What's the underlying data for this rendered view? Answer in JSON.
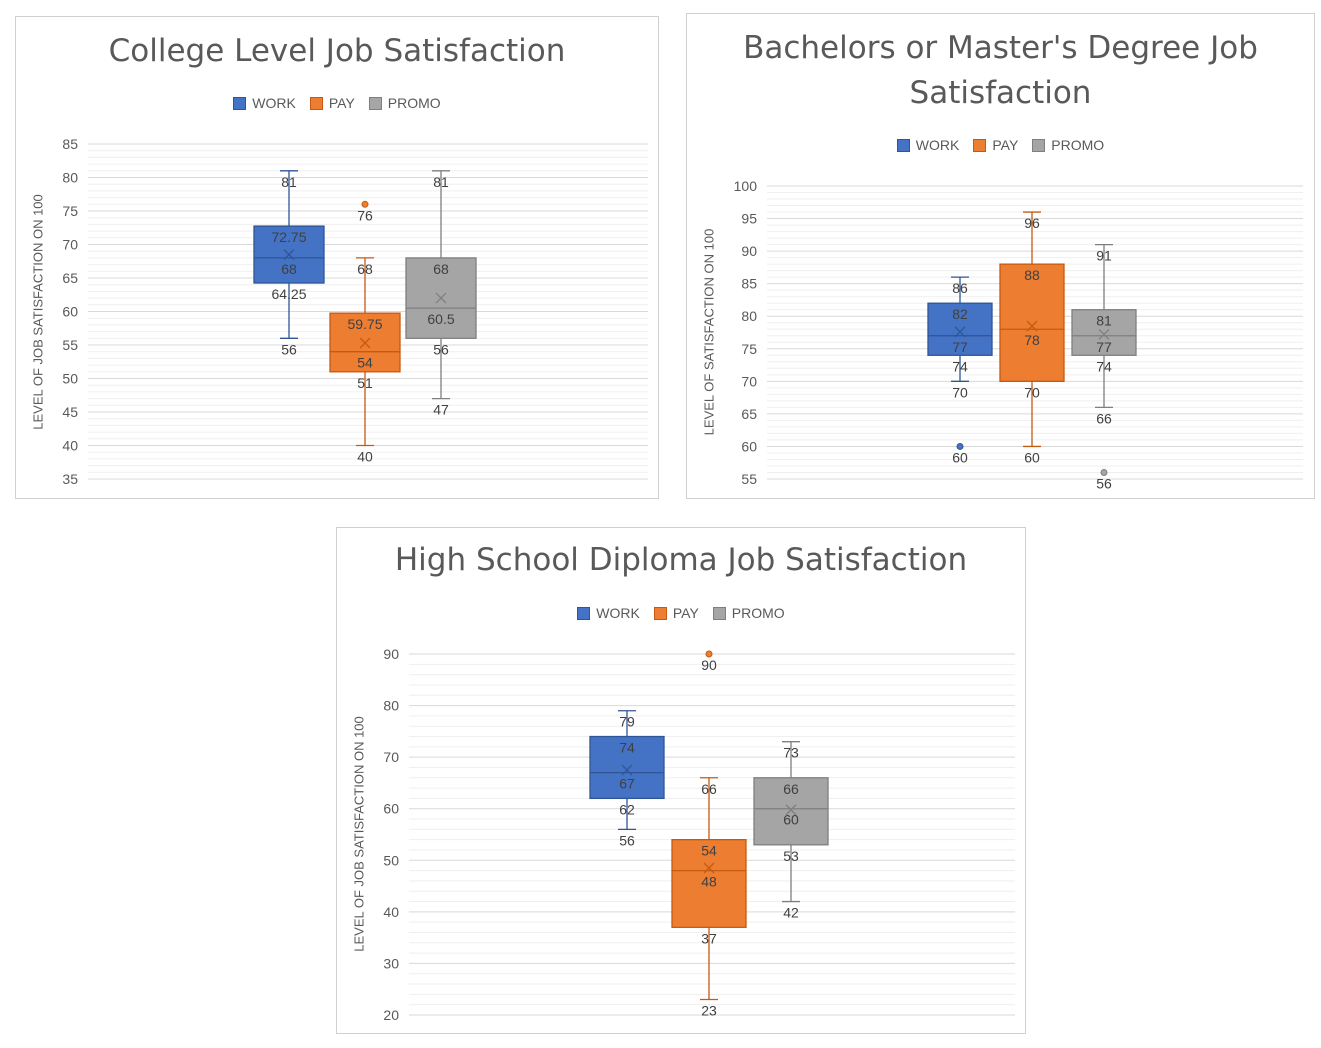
{
  "colors": {
    "work": "#4472c4",
    "work_stroke": "#2f5597",
    "pay": "#ed7d31",
    "pay_stroke": "#c55a11",
    "promo": "#a5a5a5",
    "promo_stroke": "#7f7f7f",
    "grid": "#d9d9d9",
    "minor_grid": "#efefef"
  },
  "chart_data": [
    {
      "type": "box",
      "title": "College Level Job Satisfaction",
      "ylabel": "LEVEL OF JOB SATISFACTION ON 100",
      "ylim": [
        35,
        85
      ],
      "yticks": [
        35,
        40,
        45,
        50,
        55,
        60,
        65,
        70,
        75,
        80,
        85
      ],
      "legend": [
        "WORK",
        "PAY",
        "PROMO"
      ],
      "series": [
        {
          "name": "WORK",
          "min": 56,
          "q1": 64.25,
          "median": 68,
          "q3": 72.75,
          "max": 81,
          "mean": 68.5,
          "outliers": [],
          "labels": [
            {
              "text": "81",
              "value": 81
            },
            {
              "text": "72.75",
              "value": 72.75
            },
            {
              "text": "68",
              "value": 68
            },
            {
              "text": "64.25",
              "value": 64.25
            },
            {
              "text": "56",
              "value": 56
            }
          ]
        },
        {
          "name": "PAY",
          "min": 40,
          "q1": 51,
          "median": 54,
          "q3": 59.75,
          "max": 68,
          "mean": 55.3,
          "outliers": [
            76
          ],
          "labels": [
            {
              "text": "76",
              "value": 76
            },
            {
              "text": "68",
              "value": 68
            },
            {
              "text": "59.75",
              "value": 59.75
            },
            {
              "text": "54",
              "value": 54
            },
            {
              "text": "51",
              "value": 51
            },
            {
              "text": "40",
              "value": 40
            }
          ]
        },
        {
          "name": "PROMO",
          "min": 47,
          "q1": 56,
          "median": 60.5,
          "q3": 68,
          "max": 81,
          "mean": 62,
          "outliers": [],
          "labels": [
            {
              "text": "81",
              "value": 81
            },
            {
              "text": "68",
              "value": 68
            },
            {
              "text": "60.5",
              "value": 60.5
            },
            {
              "text": "56",
              "value": 56
            },
            {
              "text": "47",
              "value": 47
            }
          ]
        }
      ]
    },
    {
      "type": "box",
      "title": "Bachelors or Master's Degree Job Satisfaction",
      "title_lines": [
        "Bachelors or Master's Degree Job",
        "Satisfaction"
      ],
      "ylabel": "LEVEL OF SATISFACTION ON 100",
      "ylim": [
        55,
        100
      ],
      "yticks": [
        55,
        60,
        65,
        70,
        75,
        80,
        85,
        90,
        95,
        100
      ],
      "legend": [
        "WORK",
        "PAY",
        "PROMO"
      ],
      "series": [
        {
          "name": "WORK",
          "min": 70,
          "q1": 74,
          "median": 77,
          "q3": 82,
          "max": 86,
          "mean": 77.6,
          "outliers": [
            60
          ],
          "labels": [
            {
              "text": "86",
              "value": 86
            },
            {
              "text": "82",
              "value": 82
            },
            {
              "text": "77",
              "value": 77
            },
            {
              "text": "74",
              "value": 74
            },
            {
              "text": "70",
              "value": 70
            },
            {
              "text": "60",
              "value": 60
            }
          ]
        },
        {
          "name": "PAY",
          "min": 60,
          "q1": 70,
          "median": 78,
          "q3": 88,
          "max": 96,
          "mean": 78.5,
          "outliers": [],
          "labels": [
            {
              "text": "96",
              "value": 96
            },
            {
              "text": "88",
              "value": 88
            },
            {
              "text": "78",
              "value": 78
            },
            {
              "text": "70",
              "value": 70
            },
            {
              "text": "60",
              "value": 60
            }
          ]
        },
        {
          "name": "PROMO",
          "min": 66,
          "q1": 74,
          "median": 77,
          "q3": 81,
          "max": 91,
          "mean": 77.2,
          "outliers": [
            56
          ],
          "labels": [
            {
              "text": "91",
              "value": 91
            },
            {
              "text": "81",
              "value": 81
            },
            {
              "text": "77",
              "value": 77
            },
            {
              "text": "74",
              "value": 74
            },
            {
              "text": "66",
              "value": 66
            },
            {
              "text": "56",
              "value": 56
            }
          ]
        }
      ]
    },
    {
      "type": "box",
      "title": "High School Diploma Job Satisfaction",
      "ylabel": "LEVEL OF JOB SATISFACTION ON 100",
      "ylim": [
        20,
        90
      ],
      "yticks": [
        20,
        30,
        40,
        50,
        60,
        70,
        80,
        90
      ],
      "legend": [
        "WORK",
        "PAY",
        "PROMO"
      ],
      "series": [
        {
          "name": "WORK",
          "min": 56,
          "q1": 62,
          "median": 67,
          "q3": 74,
          "max": 79,
          "mean": 67.5,
          "outliers": [],
          "labels": [
            {
              "text": "79",
              "value": 79
            },
            {
              "text": "74",
              "value": 74
            },
            {
              "text": "67",
              "value": 67
            },
            {
              "text": "62",
              "value": 62
            },
            {
              "text": "56",
              "value": 56
            }
          ]
        },
        {
          "name": "PAY",
          "min": 23,
          "q1": 37,
          "median": 48,
          "q3": 54,
          "max": 66,
          "mean": 48.5,
          "outliers": [
            90
          ],
          "labels": [
            {
              "text": "90",
              "value": 90
            },
            {
              "text": "66",
              "value": 66
            },
            {
              "text": "54",
              "value": 54
            },
            {
              "text": "48",
              "value": 48
            },
            {
              "text": "37",
              "value": 37
            },
            {
              "text": "23",
              "value": 23
            }
          ]
        },
        {
          "name": "PROMO",
          "min": 42,
          "q1": 53,
          "median": 60,
          "q3": 66,
          "max": 73,
          "mean": 59.8,
          "outliers": [],
          "labels": [
            {
              "text": "73",
              "value": 73
            },
            {
              "text": "66",
              "value": 66
            },
            {
              "text": "60",
              "value": 60
            },
            {
              "text": "53",
              "value": 53
            },
            {
              "text": "42",
              "value": 42
            }
          ]
        }
      ]
    }
  ]
}
